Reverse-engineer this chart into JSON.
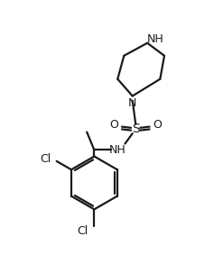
{
  "bg_color": "#ffffff",
  "line_color": "#1a1a1a",
  "line_width": 1.6,
  "font_size": 8.5,
  "figsize": [
    2.37,
    2.93
  ],
  "dpi": 100,
  "xlim": [
    0,
    10
  ],
  "ylim": [
    0,
    12.4
  ]
}
